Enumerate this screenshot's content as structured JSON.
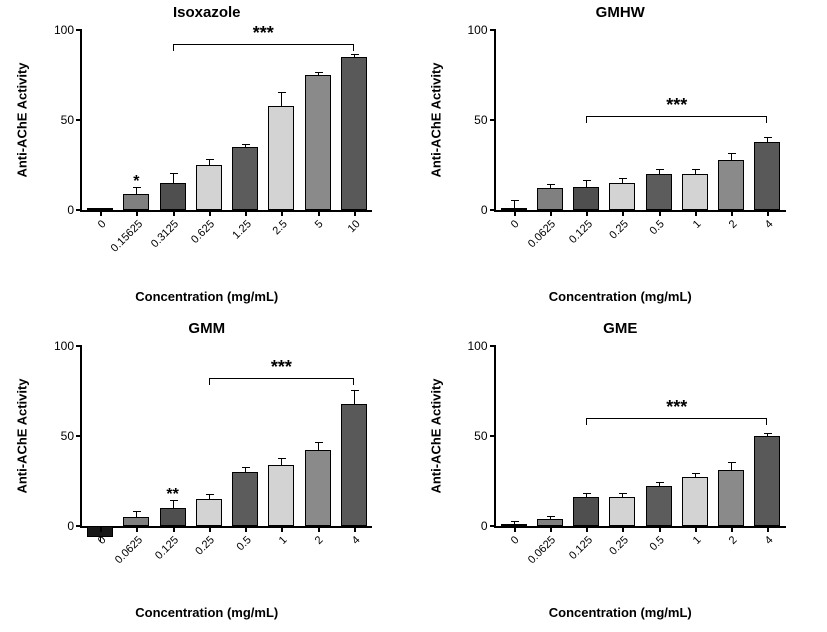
{
  "figure": {
    "background": "#ffffff",
    "panel_layout": "2x2",
    "ylabel": "Anti-AChE Activity",
    "xlabel": "Concentration (mg/mL)",
    "ylim": [
      0,
      100
    ],
    "yticks": [
      0,
      50,
      100
    ],
    "bar_border": "#000000",
    "axis_color": "#000000",
    "fill_palette": [
      "#171717",
      "#808080",
      "#4f4f4f",
      "#d3d3d3",
      "#5c5c5c",
      "#d3d3d3",
      "#8a8a8a",
      "#595959",
      "#e5e5e5"
    ]
  },
  "panels": [
    {
      "key": "isoxazole",
      "title": "Isoxazole",
      "categories": [
        "0",
        "0.15625",
        "0.3125",
        "0.625",
        "1.25",
        "2.5",
        "5",
        "10"
      ],
      "values": [
        0.5,
        9,
        15,
        25,
        35,
        58,
        75,
        85
      ],
      "errors": [
        0,
        3,
        5,
        3,
        1,
        7,
        1,
        1
      ],
      "colors": [
        "#171717",
        "#808080",
        "#4f4f4f",
        "#d3d3d3",
        "#5c5c5c",
        "#d3d3d3",
        "#8a8a8a",
        "#595959",
        "#e5e5e5"
      ],
      "sig_bracket": {
        "from_idx": 2,
        "to_idx": 7,
        "y": 92,
        "label": "***"
      },
      "single_marks": [
        {
          "idx": 1,
          "label": "*"
        }
      ]
    },
    {
      "key": "gmhw",
      "title": "GMHW",
      "categories": [
        "0",
        "0.0625",
        "0.125",
        "0.25",
        "0.5",
        "1",
        "2",
        "4"
      ],
      "values": [
        1,
        12,
        13,
        15,
        20,
        20,
        28,
        38
      ],
      "errors": [
        4,
        2,
        3,
        2,
        2,
        2,
        3,
        2
      ],
      "colors": [
        "#171717",
        "#808080",
        "#4f4f4f",
        "#d3d3d3",
        "#5c5c5c",
        "#d3d3d3",
        "#8a8a8a",
        "#595959",
        "#e5e5e5"
      ],
      "sig_bracket": {
        "from_idx": 2,
        "to_idx": 7,
        "y": 52,
        "label": "***"
      },
      "single_marks": []
    },
    {
      "key": "gmm",
      "title": "GMM",
      "categories": [
        "0",
        "0.0625",
        "0.125",
        "0.25",
        "0.5",
        "1",
        "2",
        "4"
      ],
      "values": [
        -6,
        5,
        10,
        15,
        30,
        34,
        42,
        68
      ],
      "errors": [
        3,
        3,
        4,
        2,
        2,
        3,
        4,
        7
      ],
      "colors": [
        "#171717",
        "#808080",
        "#4f4f4f",
        "#d3d3d3",
        "#5c5c5c",
        "#d3d3d3",
        "#8a8a8a",
        "#595959",
        "#e5e5e5"
      ],
      "sig_bracket": {
        "from_idx": 3,
        "to_idx": 7,
        "y": 82,
        "label": "***"
      },
      "single_marks": [
        {
          "idx": 2,
          "label": "**"
        }
      ]
    },
    {
      "key": "gme",
      "title": "GME",
      "categories": [
        "0",
        "0.0625",
        "0.125",
        "0.25",
        "0.5",
        "1",
        "2",
        "4"
      ],
      "values": [
        1,
        4,
        16,
        16,
        22,
        27,
        31,
        50
      ],
      "errors": [
        1,
        1,
        2,
        2,
        2,
        2,
        4,
        1
      ],
      "colors": [
        "#171717",
        "#808080",
        "#4f4f4f",
        "#d3d3d3",
        "#5c5c5c",
        "#d3d3d3",
        "#8a8a8a",
        "#595959",
        "#e5e5e5"
      ],
      "sig_bracket": {
        "from_idx": 2,
        "to_idx": 7,
        "y": 60,
        "label": "***"
      },
      "single_marks": []
    }
  ]
}
